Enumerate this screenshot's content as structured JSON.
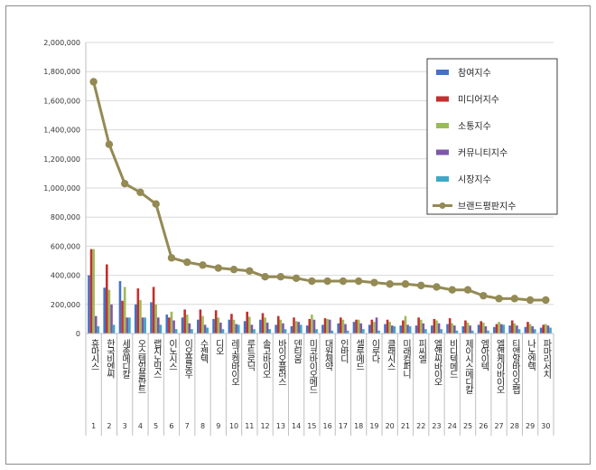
{
  "chart_data": {
    "type": "bar",
    "title": "",
    "xlabel": "",
    "ylabel": "",
    "ylim": [
      0,
      2000000
    ],
    "yticks": [
      0,
      200000,
      400000,
      600000,
      800000,
      1000000,
      1200000,
      1400000,
      1600000,
      1800000,
      2000000
    ],
    "ytick_labels": [
      "0",
      "200,000",
      "400,000",
      "600,000",
      "800,000",
      "1,000,000",
      "1,200,000",
      "1,400,000",
      "1,600,000",
      "1,800,000",
      "2,000,000"
    ],
    "grid": true,
    "legend_position": "top-right",
    "categories": [
      "휴마시스",
      "한국비엔씨",
      "세종메디칼",
      "오스템임플란트",
      "랩지노믹스",
      "이노시스",
      "이오플로우",
      "수젠텍",
      "디오",
      "레고켐바이오",
      "루트로닉",
      "솔고바이오",
      "바이오플러스",
      "덴티움",
      "미코바이오메드",
      "대원제약",
      "인바디",
      "셀루메드",
      "이루다",
      "클래시스",
      "미래컴퍼니",
      "피씨엘",
      "엘앤씨바이오",
      "비디텍메드",
      "제이시스메디칼",
      "엠아이텍",
      "엘앤케이바이오",
      "티앤알바이오팹",
      "나노엔텍",
      "파마리서치"
    ],
    "category_numbers": [
      "1",
      "2",
      "3",
      "4",
      "5",
      "6",
      "7",
      "8",
      "9",
      "10",
      "11",
      "12",
      "13",
      "14",
      "15",
      "16",
      "17",
      "18",
      "19",
      "20",
      "21",
      "22",
      "23",
      "24",
      "25",
      "26",
      "27",
      "28",
      "29",
      "30"
    ],
    "series": [
      {
        "name": "참여지수",
        "kind": "bar",
        "color": "#4472c4",
        "values": [
          400000,
          315000,
          360000,
          200000,
          215000,
          130000,
          110000,
          95000,
          100000,
          95000,
          85000,
          95000,
          60000,
          50000,
          55000,
          60000,
          70000,
          80000,
          60000,
          65000,
          55000,
          55000,
          55000,
          65000,
          50000,
          60000,
          45000,
          55000,
          45000,
          40000
        ]
      },
      {
        "name": "미디어지수",
        "kind": "bar",
        "color": "#c0312f",
        "values": [
          580000,
          475000,
          225000,
          310000,
          320000,
          110000,
          165000,
          165000,
          160000,
          135000,
          150000,
          140000,
          120000,
          110000,
          100000,
          105000,
          110000,
          95000,
          95000,
          95000,
          90000,
          110000,
          100000,
          105000,
          90000,
          85000,
          65000,
          90000,
          80000,
          60000
        ]
      },
      {
        "name": "소통지수",
        "kind": "bar",
        "color": "#9bbb59",
        "values": [
          580000,
          300000,
          320000,
          230000,
          200000,
          150000,
          130000,
          120000,
          110000,
          95000,
          115000,
          110000,
          95000,
          85000,
          130000,
          100000,
          95000,
          95000,
          80000,
          80000,
          120000,
          95000,
          90000,
          70000,
          75000,
          75000,
          80000,
          70000,
          65000,
          65000
        ]
      },
      {
        "name": "커뮤니티지수",
        "kind": "bar",
        "color": "#7e57a8",
        "values": [
          120000,
          200000,
          110000,
          110000,
          110000,
          90000,
          70000,
          60000,
          75000,
          65000,
          60000,
          75000,
          70000,
          80000,
          95000,
          95000,
          65000,
          70000,
          110000,
          55000,
          60000,
          70000,
          70000,
          55000,
          55000,
          50000,
          65000,
          55000,
          50000,
          55000
        ]
      },
      {
        "name": "시장지수",
        "kind": "bar",
        "color": "#3fa8c6",
        "values": [
          50000,
          60000,
          110000,
          110000,
          60000,
          30000,
          30000,
          40000,
          30000,
          60000,
          30000,
          30000,
          30000,
          60000,
          30000,
          20000,
          20000,
          30000,
          20000,
          50000,
          50000,
          30000,
          30000,
          20000,
          20000,
          20000,
          60000,
          30000,
          30000,
          40000
        ]
      },
      {
        "name": "브랜드평판지수",
        "kind": "line",
        "color": "#948a54",
        "values": [
          1730000,
          1300000,
          1030000,
          970000,
          890000,
          520000,
          490000,
          470000,
          450000,
          440000,
          430000,
          390000,
          390000,
          380000,
          360000,
          360000,
          360000,
          360000,
          350000,
          340000,
          340000,
          330000,
          320000,
          300000,
          300000,
          260000,
          240000,
          240000,
          230000,
          230000
        ]
      }
    ]
  }
}
